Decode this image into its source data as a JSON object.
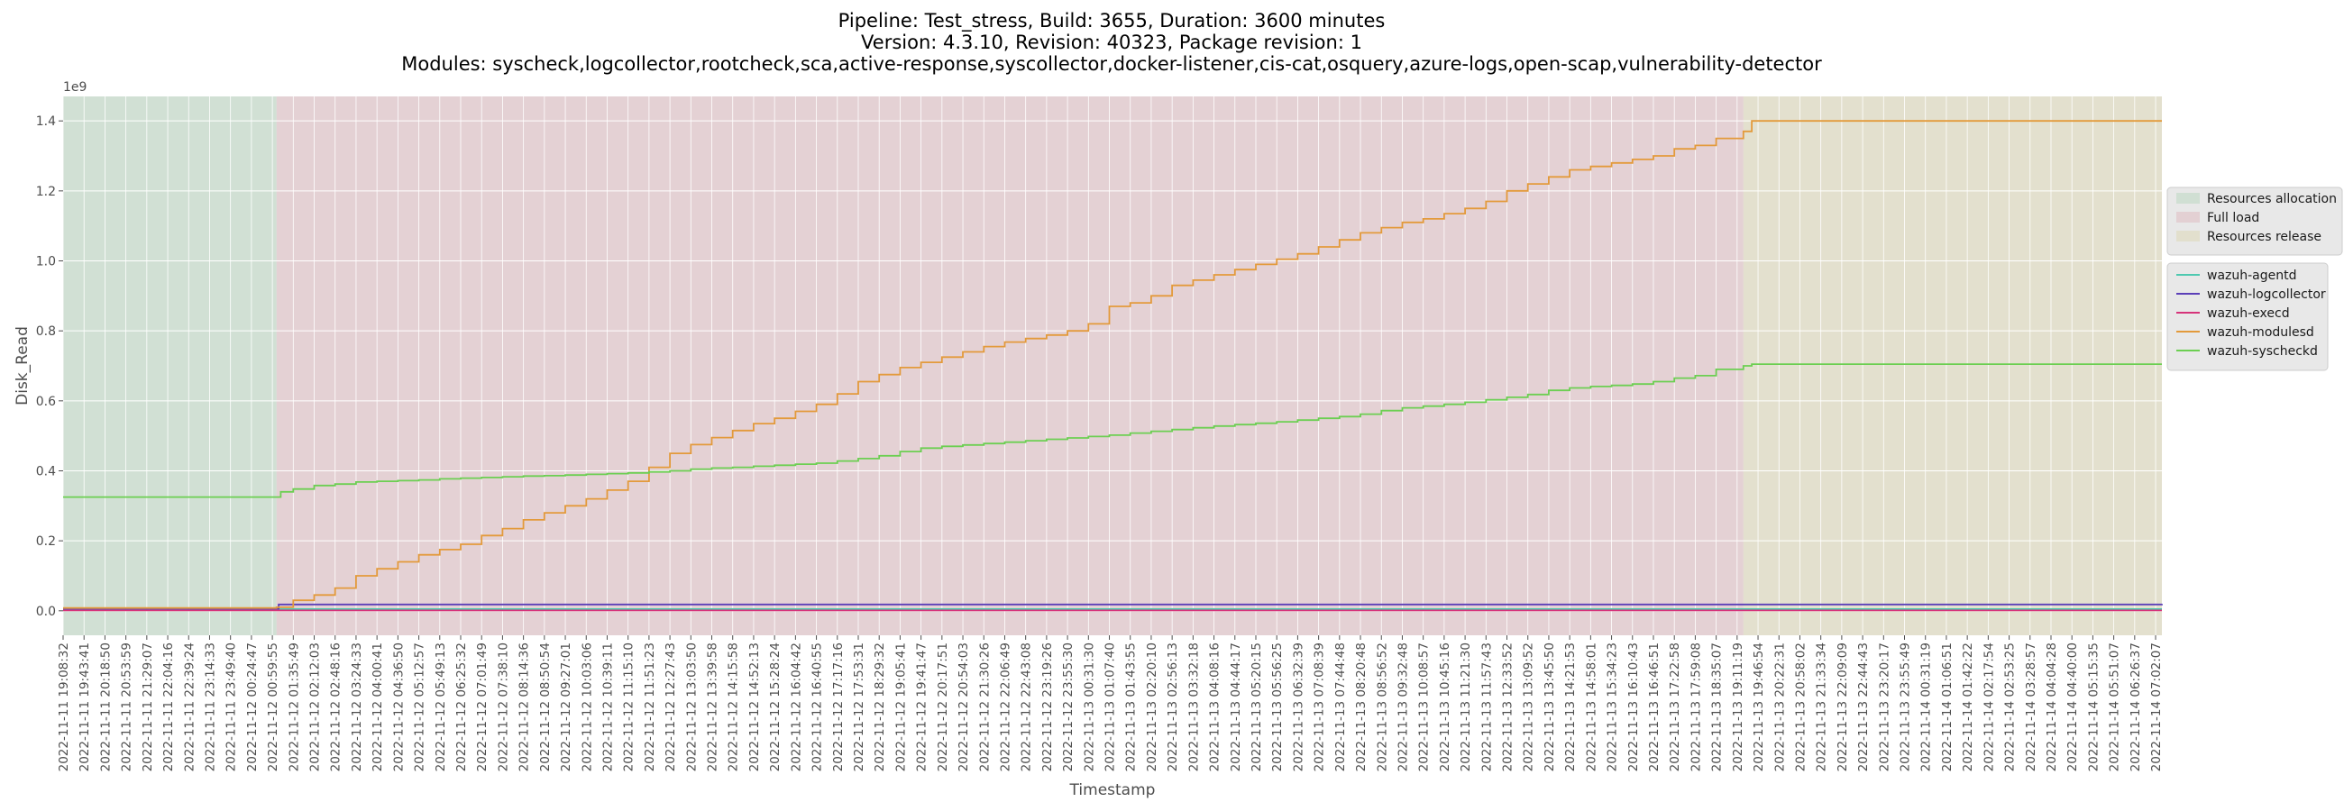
{
  "chart_data": {
    "type": "line",
    "title": [
      "Pipeline: Test_stress, Build: 3655, Duration: 3600 minutes",
      "Version: 4.3.10, Revision: 40323, Package revision: 1",
      "Modules: syscheck,logcollector,rootcheck,sca,active-response,syscollector,docker-listener,cis-cat,osquery,azure-logs,open-scap,vulnerability-detector"
    ],
    "xlabel": "Timestamp",
    "ylabel": "Disk_Read",
    "y_offset_label": "1e9",
    "y_scale": 1000000000,
    "ylim": [
      -0.07,
      1.47
    ],
    "yticks": [
      0.0,
      0.2,
      0.4,
      0.6,
      0.8,
      1.0,
      1.2,
      1.4
    ],
    "xticks": [
      "2022-11-11 19:08:32",
      "2022-11-11 19:43:41",
      "2022-11-11 20:18:50",
      "2022-11-11 20:53:59",
      "2022-11-11 21:29:07",
      "2022-11-11 22:04:16",
      "2022-11-11 22:39:24",
      "2022-11-11 23:14:33",
      "2022-11-11 23:49:40",
      "2022-11-12 00:24:47",
      "2022-11-12 00:59:55",
      "2022-11-12 01:35:49",
      "2022-11-12 02:12:03",
      "2022-11-12 02:48:16",
      "2022-11-12 03:24:33",
      "2022-11-12 04:00:41",
      "2022-11-12 04:36:50",
      "2022-11-12 05:12:57",
      "2022-11-12 05:49:13",
      "2022-11-12 06:25:32",
      "2022-11-12 07:01:49",
      "2022-11-12 07:38:10",
      "2022-11-12 08:14:36",
      "2022-11-12 08:50:54",
      "2022-11-12 09:27:01",
      "2022-11-12 10:03:06",
      "2022-11-12 10:39:11",
      "2022-11-12 11:15:10",
      "2022-11-12 11:51:23",
      "2022-11-12 12:27:43",
      "2022-11-12 13:03:50",
      "2022-11-12 13:39:58",
      "2022-11-12 14:15:58",
      "2022-11-12 14:52:13",
      "2022-11-12 15:28:24",
      "2022-11-12 16:04:42",
      "2022-11-12 16:40:55",
      "2022-11-12 17:17:16",
      "2022-11-12 17:53:31",
      "2022-11-12 18:29:32",
      "2022-11-12 19:05:41",
      "2022-11-12 19:41:47",
      "2022-11-12 20:17:51",
      "2022-11-12 20:54:03",
      "2022-11-12 21:30:26",
      "2022-11-12 22:06:49",
      "2022-11-12 22:43:08",
      "2022-11-12 23:19:26",
      "2022-11-12 23:55:30",
      "2022-11-13 00:31:30",
      "2022-11-13 01:07:40",
      "2022-11-13 01:43:55",
      "2022-11-13 02:20:10",
      "2022-11-13 02:56:13",
      "2022-11-13 03:32:18",
      "2022-11-13 04:08:16",
      "2022-11-13 04:44:17",
      "2022-11-13 05:20:15",
      "2022-11-13 05:56:25",
      "2022-11-13 06:32:39",
      "2022-11-13 07:08:39",
      "2022-11-13 07:44:48",
      "2022-11-13 08:20:48",
      "2022-11-13 08:56:52",
      "2022-11-13 09:32:48",
      "2022-11-13 10:08:57",
      "2022-11-13 10:45:16",
      "2022-11-13 11:21:30",
      "2022-11-13 11:57:43",
      "2022-11-13 12:33:52",
      "2022-11-13 13:09:52",
      "2022-11-13 13:45:50",
      "2022-11-13 14:21:53",
      "2022-11-13 14:58:01",
      "2022-11-13 15:34:23",
      "2022-11-13 16:10:43",
      "2022-11-13 16:46:51",
      "2022-11-13 17:22:58",
      "2022-11-13 17:59:08",
      "2022-11-13 18:35:07",
      "2022-11-13 19:11:19",
      "2022-11-13 19:46:54",
      "2022-11-13 20:22:31",
      "2022-11-13 20:58:02",
      "2022-11-13 21:33:34",
      "2022-11-13 22:09:09",
      "2022-11-13 22:44:43",
      "2022-11-13 23:20:17",
      "2022-11-13 23:55:49",
      "2022-11-14 00:31:19",
      "2022-11-14 01:06:51",
      "2022-11-14 01:42:22",
      "2022-11-14 02:17:54",
      "2022-11-14 02:53:25",
      "2022-11-14 03:28:57",
      "2022-11-14 04:04:28",
      "2022-11-14 04:40:00",
      "2022-11-14 05:15:35",
      "2022-11-14 05:51:07",
      "2022-11-14 06:26:37",
      "2022-11-14 07:02:07"
    ],
    "phases": [
      {
        "name": "Resources allocation",
        "start_tick": 0,
        "end_tick": 10.2,
        "color": "#c8dccc"
      },
      {
        "name": "Full load",
        "start_tick": 10.2,
        "end_tick": 80.3,
        "color": "#e2c8cc"
      },
      {
        "name": "Resources release",
        "start_tick": 80.3,
        "end_tick": 100.3,
        "color": "#e0dcc4"
      }
    ],
    "series": [
      {
        "name": "wazuh-agentd",
        "color": "#4ec9b0",
        "points": [
          [
            0,
            0.005
          ],
          [
            100.3,
            0.005
          ]
        ]
      },
      {
        "name": "wazuh-logcollector",
        "color": "#5b3fb8",
        "points": [
          [
            0,
            0.006
          ],
          [
            10.2,
            0.006
          ],
          [
            10.3,
            0.018
          ],
          [
            100.3,
            0.02
          ]
        ]
      },
      {
        "name": "wazuh-execd",
        "color": "#d6337a",
        "points": [
          [
            0,
            0.001
          ],
          [
            100.3,
            0.001
          ]
        ]
      },
      {
        "name": "wazuh-modulesd",
        "color": "#e39a3b",
        "points": [
          [
            0,
            0.008
          ],
          [
            10.2,
            0.01
          ],
          [
            11,
            0.03
          ],
          [
            12,
            0.045
          ],
          [
            13,
            0.065
          ],
          [
            14,
            0.1
          ],
          [
            15,
            0.12
          ],
          [
            16,
            0.14
          ],
          [
            17,
            0.16
          ],
          [
            18,
            0.175
          ],
          [
            19,
            0.19
          ],
          [
            20,
            0.215
          ],
          [
            21,
            0.235
          ],
          [
            22,
            0.26
          ],
          [
            23,
            0.28
          ],
          [
            24,
            0.3
          ],
          [
            25,
            0.32
          ],
          [
            26,
            0.345
          ],
          [
            27,
            0.37
          ],
          [
            28,
            0.41
          ],
          [
            29,
            0.45
          ],
          [
            30,
            0.475
          ],
          [
            31,
            0.495
          ],
          [
            32,
            0.515
          ],
          [
            33,
            0.535
          ],
          [
            34,
            0.55
          ],
          [
            35,
            0.57
          ],
          [
            36,
            0.59
          ],
          [
            37,
            0.62
          ],
          [
            38,
            0.655
          ],
          [
            39,
            0.675
          ],
          [
            40,
            0.695
          ],
          [
            41,
            0.71
          ],
          [
            42,
            0.725
          ],
          [
            43,
            0.74
          ],
          [
            44,
            0.755
          ],
          [
            45,
            0.768
          ],
          [
            46,
            0.778
          ],
          [
            47,
            0.788
          ],
          [
            48,
            0.8
          ],
          [
            49,
            0.82
          ],
          [
            50,
            0.87
          ],
          [
            51,
            0.88
          ],
          [
            52,
            0.9
          ],
          [
            53,
            0.93
          ],
          [
            54,
            0.945
          ],
          [
            55,
            0.96
          ],
          [
            56,
            0.975
          ],
          [
            57,
            0.99
          ],
          [
            58,
            1.005
          ],
          [
            59,
            1.02
          ],
          [
            60,
            1.04
          ],
          [
            61,
            1.06
          ],
          [
            62,
            1.08
          ],
          [
            63,
            1.095
          ],
          [
            64,
            1.11
          ],
          [
            65,
            1.12
          ],
          [
            66,
            1.135
          ],
          [
            67,
            1.15
          ],
          [
            68,
            1.17
          ],
          [
            69,
            1.2
          ],
          [
            70,
            1.22
          ],
          [
            71,
            1.24
          ],
          [
            72,
            1.26
          ],
          [
            73,
            1.27
          ],
          [
            74,
            1.28
          ],
          [
            75,
            1.29
          ],
          [
            76,
            1.3
          ],
          [
            77,
            1.32
          ],
          [
            78,
            1.33
          ],
          [
            79,
            1.35
          ],
          [
            80.3,
            1.37
          ],
          [
            80.7,
            1.4
          ],
          [
            100.3,
            1.4
          ]
        ]
      },
      {
        "name": "wazuh-syscheckd",
        "color": "#6ccf52",
        "points": [
          [
            0,
            0.325
          ],
          [
            10.2,
            0.325
          ],
          [
            10.4,
            0.34
          ],
          [
            11,
            0.348
          ],
          [
            12,
            0.358
          ],
          [
            13,
            0.362
          ],
          [
            14,
            0.368
          ],
          [
            15,
            0.37
          ],
          [
            16,
            0.372
          ],
          [
            17,
            0.374
          ],
          [
            18,
            0.377
          ],
          [
            19,
            0.379
          ],
          [
            20,
            0.381
          ],
          [
            21,
            0.383
          ],
          [
            22,
            0.385
          ],
          [
            23,
            0.386
          ],
          [
            24,
            0.388
          ],
          [
            25,
            0.39
          ],
          [
            26,
            0.392
          ],
          [
            27,
            0.394
          ],
          [
            28,
            0.397
          ],
          [
            29,
            0.4
          ],
          [
            30,
            0.405
          ],
          [
            31,
            0.408
          ],
          [
            32,
            0.41
          ],
          [
            33,
            0.413
          ],
          [
            34,
            0.416
          ],
          [
            35,
            0.419
          ],
          [
            36,
            0.422
          ],
          [
            37,
            0.428
          ],
          [
            38,
            0.435
          ],
          [
            39,
            0.443
          ],
          [
            40,
            0.455
          ],
          [
            41,
            0.465
          ],
          [
            42,
            0.47
          ],
          [
            43,
            0.474
          ],
          [
            44,
            0.478
          ],
          [
            45,
            0.482
          ],
          [
            46,
            0.486
          ],
          [
            47,
            0.49
          ],
          [
            48,
            0.494
          ],
          [
            49,
            0.498
          ],
          [
            50,
            0.502
          ],
          [
            51,
            0.508
          ],
          [
            52,
            0.513
          ],
          [
            53,
            0.518
          ],
          [
            54,
            0.523
          ],
          [
            55,
            0.528
          ],
          [
            56,
            0.532
          ],
          [
            57,
            0.536
          ],
          [
            58,
            0.54
          ],
          [
            59,
            0.545
          ],
          [
            60,
            0.55
          ],
          [
            61,
            0.555
          ],
          [
            62,
            0.562
          ],
          [
            63,
            0.572
          ],
          [
            64,
            0.58
          ],
          [
            65,
            0.585
          ],
          [
            66,
            0.59
          ],
          [
            67,
            0.596
          ],
          [
            68,
            0.603
          ],
          [
            69,
            0.61
          ],
          [
            70,
            0.618
          ],
          [
            71,
            0.63
          ],
          [
            72,
            0.637
          ],
          [
            73,
            0.641
          ],
          [
            74,
            0.644
          ],
          [
            75,
            0.648
          ],
          [
            76,
            0.655
          ],
          [
            77,
            0.665
          ],
          [
            78,
            0.672
          ],
          [
            79,
            0.69
          ],
          [
            80.3,
            0.7
          ],
          [
            80.7,
            0.705
          ],
          [
            100.3,
            0.705
          ]
        ]
      }
    ],
    "legend_phases_position": "right, upper",
    "legend_series_position": "right, below phases",
    "grid": true,
    "plot_background": "#ebebeb",
    "grid_color": "#ffffff"
  }
}
